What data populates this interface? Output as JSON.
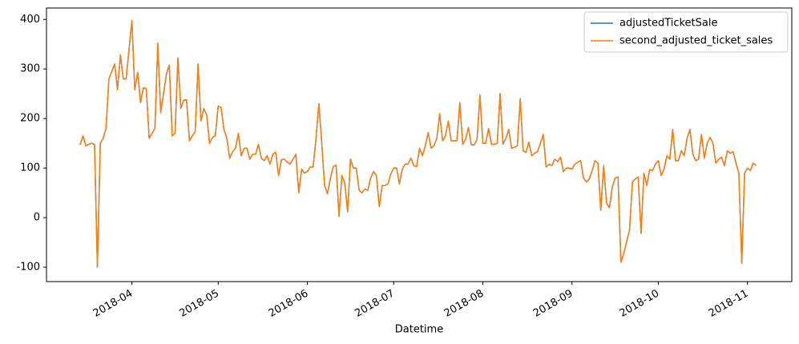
{
  "chart_data": {
    "type": "line",
    "xlabel": "Datetime",
    "xlim": [
      -11.7,
      247.4
    ],
    "xticks": [
      {
        "value": 18,
        "label": "2018-04"
      },
      {
        "value": 48,
        "label": "2018-05"
      },
      {
        "value": 79,
        "label": "2018-06"
      },
      {
        "value": 109,
        "label": "2018-07"
      },
      {
        "value": 140,
        "label": "2018-08"
      },
      {
        "value": 171,
        "label": "2018-09"
      },
      {
        "value": 201,
        "label": "2018-10"
      },
      {
        "value": 232,
        "label": "2018-11"
      }
    ],
    "ylim": [
      -129,
      423
    ],
    "yticks": [
      -100,
      0,
      100,
      200,
      300,
      400
    ],
    "legend": "upper right",
    "series": [
      {
        "name": "adjustedTicketSale",
        "color": "#1f77b4",
        "values": [
          147,
          165,
          145,
          148,
          150,
          148,
          -100,
          150,
          160,
          180,
          280,
          295,
          310,
          258,
          328,
          280,
          280,
          340,
          398,
          258,
          293,
          232,
          262,
          260,
          160,
          170,
          180,
          352,
          212,
          250,
          290,
          308,
          165,
          170,
          322,
          220,
          237,
          238,
          155,
          165,
          173,
          310,
          195,
          220,
          207,
          150,
          162,
          165,
          225,
          222,
          178,
          160,
          120,
          133,
          140,
          170,
          125,
          140,
          140,
          118,
          128,
          128,
          148,
          120,
          115,
          125,
          108,
          128,
          132,
          85,
          117,
          118,
          112,
          108,
          118,
          128,
          50,
          98,
          90,
          93,
          102,
          102,
          160,
          230,
          150,
          65,
          48,
          80,
          103,
          106,
          3,
          85,
          70,
          12,
          118,
          100,
          100,
          55,
          50,
          58,
          55,
          80,
          93,
          85,
          22,
          65,
          65,
          68,
          88,
          100,
          100,
          68,
          98,
          108,
          108,
          120,
          105,
          103,
          140,
          125,
          145,
          172,
          140,
          145,
          160,
          210,
          155,
          165,
          195,
          155,
          155,
          155,
          232,
          148,
          158,
          182,
          147,
          147,
          158,
          247,
          150,
          150,
          180,
          148,
          148,
          150,
          250,
          148,
          160,
          178,
          140,
          142,
          145,
          240,
          135,
          132,
          152,
          125,
          130,
          133,
          150,
          168,
          102,
          108,
          105,
          118,
          113,
          122,
          93,
          100,
          100,
          98,
          108,
          112,
          115,
          80,
          72,
          78,
          95,
          115,
          110,
          15,
          105,
          30,
          20,
          62,
          80,
          82,
          -90,
          -72,
          -48,
          -25,
          72,
          78,
          82,
          -32,
          90,
          65,
          97,
          95,
          108,
          115,
          85,
          98,
          125,
          118,
          178,
          115,
          115,
          135,
          125,
          160,
          178,
          128,
          115,
          118,
          168,
          120,
          150,
          162,
          150,
          110,
          118,
          122,
          105,
          135,
          130,
          133,
          110,
          90,
          -92,
          90,
          100,
          95,
          110,
          105
        ]
      },
      {
        "name": "second_adjusted_ticket_sales",
        "color": "#ff7f0e",
        "values": [
          147,
          165,
          145,
          148,
          150,
          148,
          -100,
          150,
          160,
          180,
          280,
          295,
          310,
          258,
          328,
          280,
          280,
          340,
          398,
          258,
          293,
          232,
          262,
          260,
          160,
          170,
          180,
          352,
          212,
          250,
          290,
          308,
          165,
          170,
          322,
          220,
          237,
          238,
          155,
          165,
          173,
          310,
          195,
          220,
          207,
          150,
          162,
          165,
          225,
          222,
          178,
          160,
          120,
          133,
          140,
          170,
          125,
          140,
          140,
          118,
          128,
          128,
          148,
          120,
          115,
          125,
          108,
          128,
          132,
          85,
          117,
          118,
          112,
          108,
          118,
          128,
          50,
          98,
          90,
          93,
          102,
          102,
          160,
          230,
          150,
          65,
          48,
          80,
          103,
          106,
          3,
          85,
          70,
          12,
          118,
          100,
          100,
          55,
          50,
          58,
          55,
          80,
          93,
          85,
          22,
          65,
          65,
          68,
          88,
          100,
          100,
          68,
          98,
          108,
          108,
          120,
          105,
          103,
          140,
          125,
          145,
          172,
          140,
          145,
          160,
          210,
          155,
          165,
          195,
          155,
          155,
          155,
          232,
          148,
          158,
          182,
          147,
          147,
          158,
          247,
          150,
          150,
          180,
          148,
          148,
          150,
          250,
          148,
          160,
          178,
          140,
          142,
          145,
          240,
          135,
          132,
          152,
          125,
          130,
          133,
          150,
          168,
          102,
          108,
          105,
          118,
          113,
          122,
          93,
          100,
          100,
          98,
          108,
          112,
          115,
          80,
          72,
          78,
          95,
          115,
          110,
          15,
          105,
          30,
          20,
          62,
          80,
          82,
          -90,
          -72,
          -48,
          -25,
          72,
          78,
          82,
          -32,
          90,
          65,
          97,
          95,
          108,
          115,
          85,
          98,
          125,
          118,
          178,
          115,
          115,
          135,
          125,
          160,
          178,
          128,
          115,
          118,
          168,
          120,
          150,
          162,
          150,
          110,
          118,
          122,
          105,
          135,
          130,
          133,
          110,
          90,
          -92,
          90,
          100,
          95,
          110,
          105
        ]
      }
    ]
  }
}
